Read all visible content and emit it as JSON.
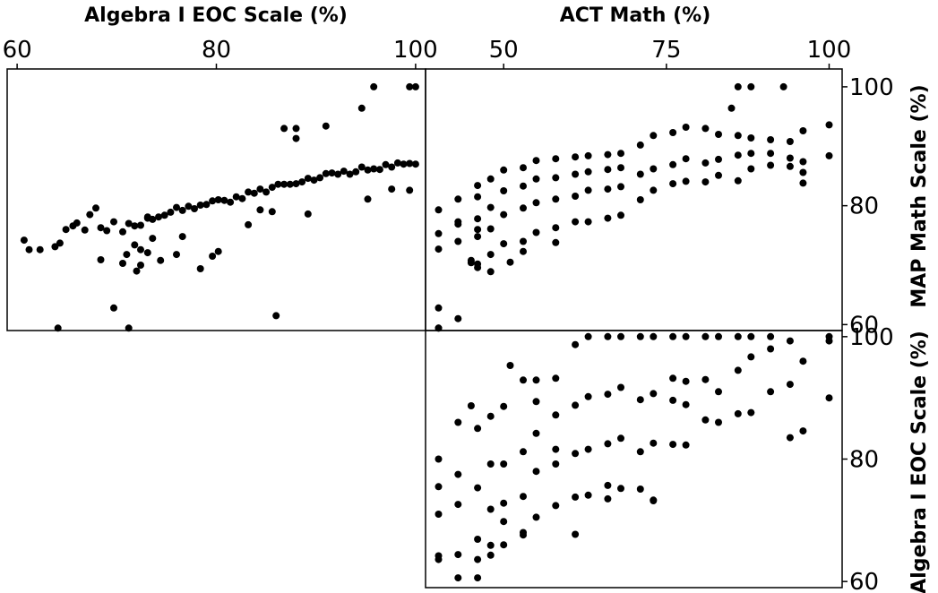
{
  "chart_data": {
    "type": "scatter",
    "layout": "scatterplot matrix (upper triangle)",
    "grid": false,
    "legend": "none",
    "top_axes": [
      {
        "label": "Algebra I EOC Scale (%)",
        "range": [
          59,
          101
        ],
        "ticks": [
          60,
          80,
          100
        ],
        "tick_labels": [
          "60",
          "80",
          "100"
        ]
      },
      {
        "label": "ACT Math (%)",
        "range": [
          38,
          102
        ],
        "ticks": [
          50,
          75,
          100
        ],
        "tick_labels": [
          "50",
          "75",
          "100"
        ]
      }
    ],
    "right_axes": [
      {
        "label": "MAP Math Scale (%)",
        "range": [
          59,
          103
        ],
        "ticks": [
          60,
          80,
          100
        ],
        "tick_labels": [
          "60",
          "80",
          "100"
        ]
      },
      {
        "label": "Algebra I EOC Scale (%)",
        "range": [
          59,
          101
        ],
        "ticks": [
          60,
          80,
          100
        ],
        "tick_labels": [
          "60",
          "80",
          "100"
        ]
      }
    ],
    "panels": [
      {
        "name": "MAP Math Scale vs Algebra I EOC Scale",
        "xlabel": "Algebra I EOC Scale (%)",
        "ylabel": "MAP Math Scale (%)",
        "x": [
          60.7,
          61.2,
          62.3,
          63.8,
          64.3,
          64.9,
          65.6,
          66.0,
          66.8,
          67.3,
          67.9,
          68.4,
          69.0,
          69.7,
          70.6,
          71.0,
          71.2,
          71.8,
          72.4,
          72.4,
          73.1,
          73.1,
          73.6,
          74.2,
          74.8,
          75.4,
          76.0,
          76.6,
          77.2,
          77.8,
          78.4,
          79.0,
          79.6,
          80.2,
          80.8,
          81.4,
          82.0,
          82.6,
          83.2,
          83.8,
          84.4,
          85.0,
          85.6,
          86.2,
          86.8,
          87.4,
          88.0,
          88.6,
          89.2,
          89.8,
          90.4,
          91.0,
          91.6,
          92.2,
          92.8,
          93.4,
          94.0,
          94.6,
          95.2,
          95.8,
          96.4,
          97.0,
          97.6,
          98.2,
          98.8,
          99.4,
          100.0,
          94.6,
          95.8,
          99.4,
          100.0,
          91.0,
          88.0,
          86.8,
          88.0,
          72.4,
          78.4,
          80.2,
          73.1,
          70.6,
          71.8,
          85.6,
          95.2,
          97.6,
          99.4,
          64.1,
          71.2,
          86.0,
          69.7,
          79.6,
          74.4,
          72.0,
          68.4,
          76.0,
          76.6,
          73.6,
          83.2,
          84.4,
          89.2
        ],
        "y": [
          74.2,
          72.6,
          72.6,
          73.1,
          73.7,
          76.0,
          76.6,
          77.1,
          75.9,
          78.5,
          79.6,
          76.3,
          75.8,
          77.3,
          75.6,
          71.8,
          77.0,
          76.6,
          76.7,
          72.6,
          77.9,
          78.1,
          77.7,
          78.1,
          78.4,
          78.9,
          79.7,
          79.2,
          79.9,
          79.5,
          80.1,
          80.2,
          80.8,
          81.0,
          80.9,
          80.6,
          81.5,
          81.2,
          82.3,
          82.1,
          82.8,
          82.3,
          83.1,
          83.6,
          83.6,
          83.6,
          83.7,
          84.0,
          84.6,
          84.3,
          84.7,
          85.4,
          85.5,
          85.3,
          85.8,
          85.3,
          85.7,
          86.5,
          86.0,
          86.2,
          86.1,
          86.9,
          86.5,
          87.2,
          87.0,
          87.1,
          87.0,
          96.4,
          100.0,
          100.0,
          100.0,
          93.4,
          91.3,
          93.0,
          93.0,
          70.0,
          69.4,
          72.3,
          72.1,
          70.3,
          73.4,
          79.0,
          81.1,
          82.8,
          82.6,
          59.4,
          59.4,
          61.5,
          62.8,
          71.5,
          70.8,
          69.0,
          70.9,
          71.8,
          74.8,
          74.5,
          76.8,
          79.3,
          78.6
        ]
      },
      {
        "name": "MAP Math Scale vs ACT Math",
        "xlabel": "ACT Math (%)",
        "ylabel": "MAP Math Scale (%)",
        "x": [
          40,
          40,
          40,
          43,
          43,
          43,
          46,
          46,
          46,
          46,
          48,
          48,
          48,
          48,
          50,
          50,
          50,
          50,
          53,
          53,
          53,
          53,
          55,
          55,
          55,
          55,
          58,
          58,
          58,
          58,
          61,
          61,
          61,
          61,
          63,
          63,
          63,
          63,
          66,
          66,
          66,
          66,
          68,
          68,
          68,
          68,
          71,
          71,
          71,
          73,
          73,
          73,
          76,
          76,
          76,
          78,
          78,
          78,
          81,
          81,
          81,
          83,
          83,
          83,
          86,
          86,
          86,
          88,
          88,
          88,
          91,
          91,
          91,
          94,
          94,
          94,
          96,
          96,
          96,
          100,
          100,
          86,
          88,
          93,
          85,
          96,
          43,
          46,
          46,
          58,
          53,
          51,
          48,
          45,
          40,
          40,
          40,
          43,
          46,
          45
        ],
        "y": [
          72.7,
          75.3,
          79.3,
          74.0,
          76.9,
          81.1,
          70.2,
          76.0,
          81.5,
          83.4,
          71.8,
          76.1,
          79.7,
          84.5,
          73.6,
          78.5,
          82.5,
          86.0,
          74.0,
          79.6,
          83.3,
          86.4,
          75.5,
          80.5,
          84.5,
          87.6,
          76.3,
          81.1,
          84.7,
          87.9,
          77.3,
          81.6,
          85.3,
          88.2,
          77.3,
          82.6,
          85.7,
          88.4,
          77.9,
          82.8,
          86.1,
          88.6,
          78.4,
          83.2,
          86.4,
          88.8,
          81.0,
          85.3,
          90.2,
          82.6,
          86.2,
          91.8,
          83.7,
          86.9,
          92.3,
          84.1,
          87.9,
          93.2,
          84.0,
          87.2,
          93.0,
          85.1,
          87.8,
          92.0,
          84.2,
          88.5,
          91.8,
          86.2,
          88.8,
          91.4,
          86.8,
          88.8,
          91.1,
          86.6,
          88.0,
          90.8,
          85.6,
          87.4,
          92.6,
          88.4,
          93.6,
          100.0,
          100.0,
          100.0,
          96.4,
          83.8,
          77.3,
          69.6,
          74.8,
          73.8,
          72.3,
          70.5,
          68.9,
          70.8,
          59.4,
          59.4,
          62.8,
          61.0,
          77.8,
          70.4
        ]
      },
      {
        "name": "Algebra I EOC Scale vs ACT Math",
        "xlabel": "ACT Math (%)",
        "ylabel": "Algebra I EOC Scale (%)",
        "x": [
          40,
          40,
          40,
          40,
          43,
          43,
          43,
          43,
          46,
          46,
          46,
          46,
          48,
          48,
          48,
          48,
          50,
          50,
          50,
          50,
          53,
          53,
          53,
          53,
          55,
          55,
          55,
          55,
          58,
          58,
          58,
          58,
          61,
          61,
          61,
          61,
          63,
          63,
          63,
          63,
          66,
          66,
          66,
          66,
          68,
          68,
          68,
          68,
          71,
          71,
          71,
          73,
          73,
          73,
          73,
          76,
          76,
          76,
          76,
          78,
          78,
          78,
          78,
          81,
          81,
          81,
          83,
          83,
          83,
          86,
          86,
          86,
          88,
          88,
          88,
          91,
          91,
          91,
          94,
          94,
          94,
          96,
          96,
          100,
          100,
          100,
          53,
          61,
          66,
          71,
          73,
          46,
          48,
          50,
          51,
          45,
          55,
          58,
          40,
          43
        ],
        "y": [
          63.6,
          71.0,
          75.5,
          80.0,
          60.6,
          72.6,
          77.5,
          86.0,
          60.6,
          66.9,
          75.3,
          85.0,
          65.9,
          71.8,
          79.2,
          87.0,
          66.0,
          72.8,
          79.2,
          88.6,
          67.6,
          73.9,
          81.2,
          92.9,
          70.5,
          78.0,
          84.2,
          92.9,
          72.4,
          79.2,
          87.2,
          93.2,
          73.8,
          80.9,
          88.8,
          98.7,
          74.1,
          81.6,
          90.2,
          100.0,
          75.7,
          82.5,
          90.6,
          100.0,
          75.2,
          83.4,
          91.7,
          100.0,
          81.2,
          89.7,
          100.0,
          73.2,
          82.6,
          90.7,
          100.0,
          82.4,
          89.6,
          93.2,
          100.0,
          82.3,
          88.9,
          92.7,
          100.0,
          86.4,
          93.0,
          100.0,
          86.0,
          91.0,
          100.0,
          87.4,
          94.5,
          100.0,
          87.6,
          96.7,
          100.0,
          91.0,
          98.0,
          100.0,
          83.5,
          92.2,
          99.3,
          84.6,
          96.0,
          90.0,
          99.3,
          100.0,
          68.0,
          67.7,
          73.5,
          75.1,
          73.3,
          63.6,
          64.3,
          69.8,
          95.3,
          88.7,
          89.4,
          81.6,
          64.2,
          64.4
        ]
      }
    ]
  }
}
